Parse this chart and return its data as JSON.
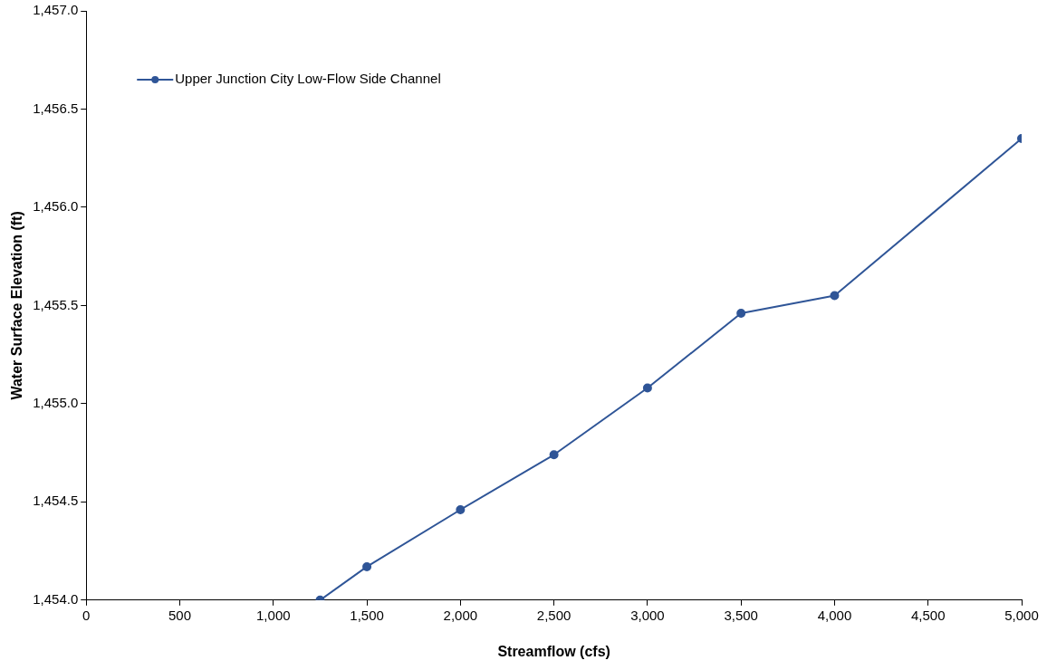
{
  "chart_data": {
    "type": "line",
    "xlabel": "Streamflow (cfs)",
    "ylabel": "Water Surface Elevation (ft)",
    "xlim": [
      0,
      5000
    ],
    "xticks": [
      {
        "value": 0,
        "label": "0"
      },
      {
        "value": 500,
        "label": "500"
      },
      {
        "value": 1000,
        "label": "1,000"
      },
      {
        "value": 1500,
        "label": "1,500"
      },
      {
        "value": 2000,
        "label": "2,000"
      },
      {
        "value": 2500,
        "label": "2,500"
      },
      {
        "value": 3000,
        "label": "3,000"
      },
      {
        "value": 3500,
        "label": "3,500"
      },
      {
        "value": 4000,
        "label": "4,000"
      },
      {
        "value": 4500,
        "label": "4,500"
      },
      {
        "value": 5000,
        "label": "5,000"
      }
    ],
    "ylim": [
      1454.0,
      1457.0
    ],
    "yticks": [
      {
        "value": 1454.0,
        "label": "1,454.0"
      },
      {
        "value": 1454.5,
        "label": "1,454.5"
      },
      {
        "value": 1455.0,
        "label": "1,455.0"
      },
      {
        "value": 1455.5,
        "label": "1,455.5"
      },
      {
        "value": 1456.0,
        "label": "1,456.0"
      },
      {
        "value": 1456.5,
        "label": "1,456.5"
      },
      {
        "value": 1457.0,
        "label": "1,457.0"
      }
    ],
    "x": [
      1250,
      1500,
      2000,
      2500,
      3000,
      3500,
      4000,
      5000
    ],
    "series": [
      {
        "name": "Upper Junction City Low-Flow Side Channel",
        "color": "#2f5597",
        "values": [
          1454.0,
          1454.17,
          1454.46,
          1454.74,
          1455.08,
          1455.46,
          1455.55,
          1456.35
        ]
      }
    ],
    "legend": "top left",
    "marker": "circle",
    "line_style": "solid",
    "grid": false
  }
}
